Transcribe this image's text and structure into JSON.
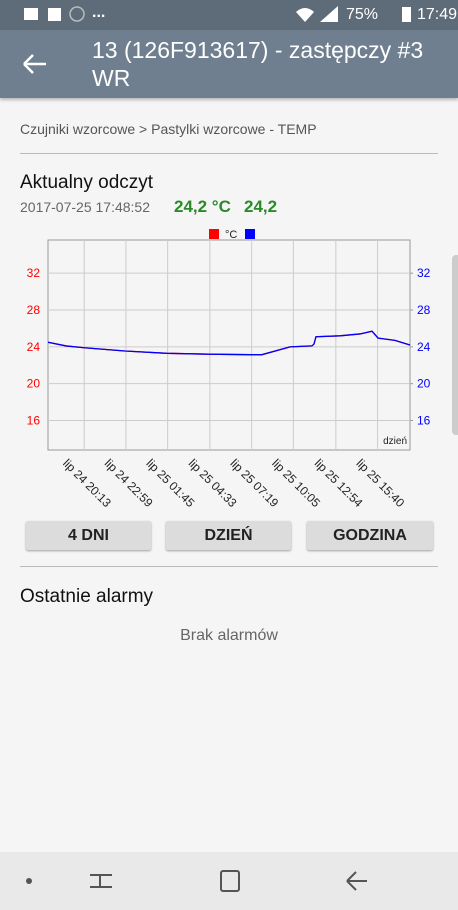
{
  "status_bar": {
    "menu": "...",
    "battery": "75%",
    "time": "17:49"
  },
  "app_bar": {
    "title": "13 (126F913617) - zastępczy #3 WR"
  },
  "breadcrumb": "Czujniki wzorcowe > Pastylki wzorcowe - TEMP",
  "reading": {
    "label": "Aktualny odczyt",
    "timestamp": "2017-07-25 17:48:52",
    "value_1": "24,2 °C",
    "value_2": "24,2"
  },
  "chart_data": {
    "type": "line",
    "x": [
      "lip 24 17:49",
      "lip 24 19:01",
      "lip 24 20:13",
      "lip 24 22:55",
      "lip 25 01:42",
      "lip 25 04:29",
      "lip 25 07:17",
      "lip 25 08:00",
      "lip 25 09:52",
      "lip 25 11:19",
      "lip 25 11:27",
      "lip 25 11:35",
      "lip 25 13:11",
      "lip 25 14:30",
      "lip 25 15:18",
      "lip 25 15:42",
      "lip 25 16:49",
      "lip 25 17:49"
    ],
    "series": [
      {
        "name": "°C",
        "color": "#ff0000",
        "values": [
          24.5,
          24.1,
          23.9,
          23.55,
          23.3,
          23.2,
          23.15,
          23.15,
          24.0,
          24.1,
          24.3,
          25.1,
          25.2,
          25.4,
          25.7,
          24.95,
          24.7,
          24.2
        ]
      },
      {
        "color": "#0000ff",
        "axis": "y2",
        "values": [
          24.5,
          24.1,
          23.9,
          23.55,
          23.3,
          23.2,
          23.15,
          23.15,
          24.0,
          24.1,
          24.3,
          25.1,
          25.2,
          25.4,
          25.7,
          24.95,
          24.7,
          24.2
        ]
      }
    ],
    "xlim": [
      "lip 24 17:49",
      "lip 25 17:49"
    ],
    "xticks": [
      "lip 24 20:13",
      "lip 24 22:59",
      "lip 25 01:45",
      "lip 25 04:33",
      "lip 25 07:19",
      "lip 25 10:05",
      "lip 25 12:54",
      "lip 25 15:40"
    ],
    "x_label": "dzień",
    "ylim": [
      12.8,
      35.6
    ],
    "yticks": [
      16,
      20,
      24,
      28,
      32
    ],
    "y2lim": [
      12.8,
      35.6
    ],
    "y2ticks": [
      16,
      20,
      24,
      28,
      32
    ],
    "grid": true
  },
  "buttons": [
    "4 DNI",
    "DZIEŃ",
    "GODZINA"
  ],
  "alarms": {
    "title": "Ostatnie alarmy",
    "empty_text": "Brak alarmów"
  }
}
